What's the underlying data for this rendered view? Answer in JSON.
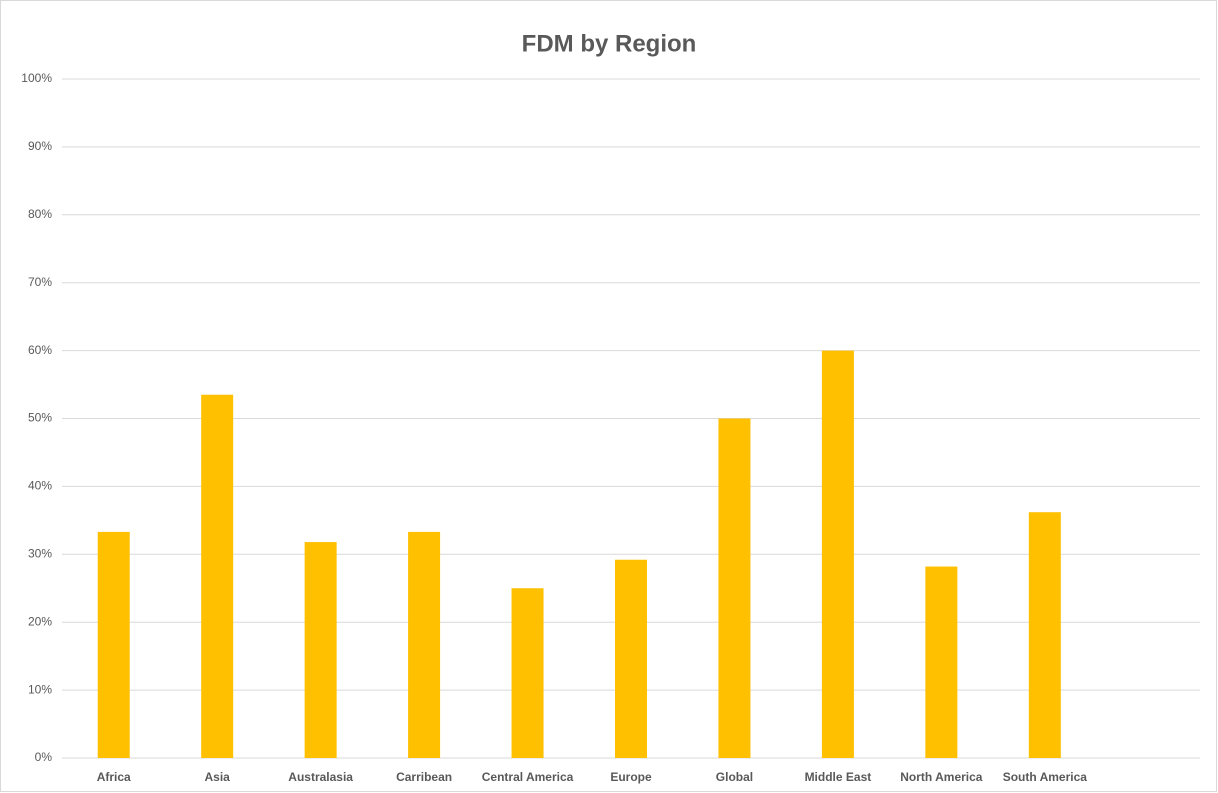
{
  "chart_data": {
    "type": "bar",
    "title": "FDM by Region",
    "categories": [
      "Africa",
      "Asia",
      "Australasia",
      "Carribean",
      "Central America",
      "Europe",
      "Global",
      "Middle East",
      "North America",
      "South America",
      null
    ],
    "values": [
      33.3,
      53.5,
      31.8,
      33.3,
      25,
      29.2,
      50,
      60,
      28.2,
      36.2,
      null
    ],
    "color": "#ffc000",
    "ylim": [
      0,
      100
    ],
    "yticks": [
      {
        "value": 0,
        "label": "0%"
      },
      {
        "value": 10,
        "label": "10%"
      },
      {
        "value": 20,
        "label": "20%"
      },
      {
        "value": 30,
        "label": "30%"
      },
      {
        "value": 40,
        "label": "40%"
      },
      {
        "value": 50,
        "label": "50%"
      },
      {
        "value": 60,
        "label": "60%"
      },
      {
        "value": 70,
        "label": "70%"
      },
      {
        "value": 80,
        "label": "80%"
      },
      {
        "value": 90,
        "label": "90%"
      },
      {
        "value": 100,
        "label": "100%"
      }
    ],
    "grid": true
  }
}
